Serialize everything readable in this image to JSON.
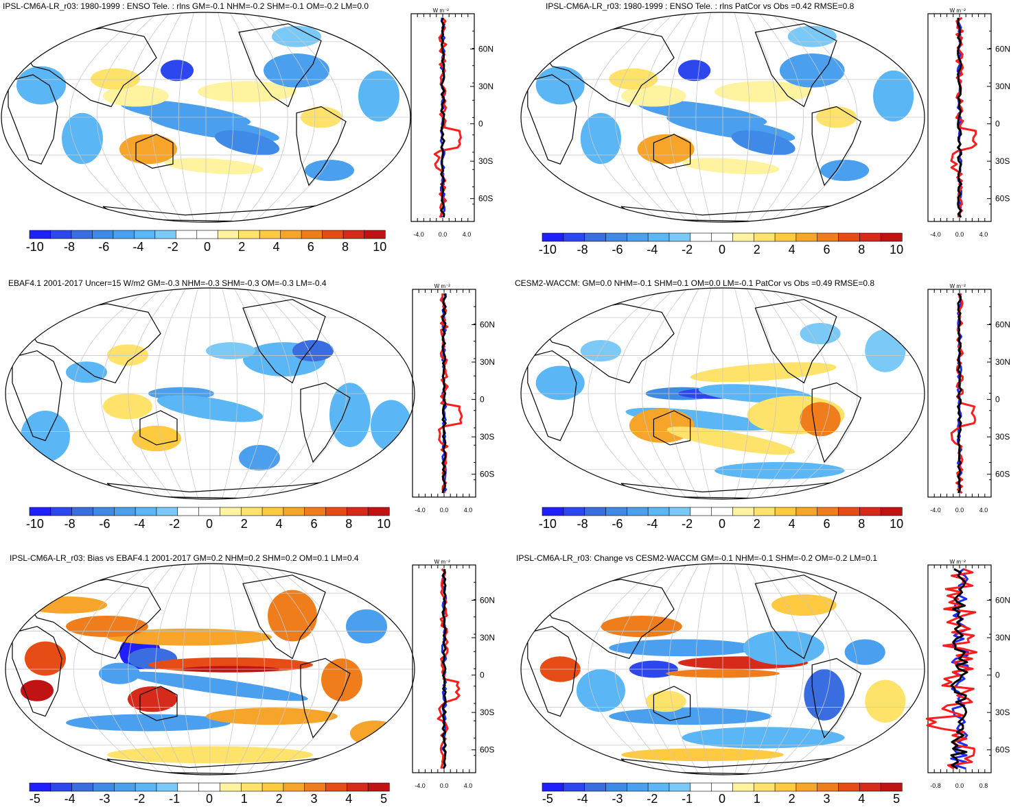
{
  "colors": {
    "scale": [
      "#2020ff",
      "#2d47ee",
      "#3a6ee0",
      "#3f8ae6",
      "#4aa0ee",
      "#5ab6f4",
      "#7ac9f6",
      "#ffffff",
      "#ffffff",
      "#fff3a0",
      "#ffe26a",
      "#ffc940",
      "#f7a52a",
      "#f07d1c",
      "#e64d16",
      "#d62a1a",
      "#c01414"
    ],
    "red_line": "#ff1c1c",
    "blue_line": "#1c2cff",
    "black_line": "#000000",
    "grid": "#c8c8c8"
  },
  "panels": [
    {
      "id": "p1",
      "title": "IPSL-CM6A-LR_r03: 1980-1999 : ENSO Tele. : rlns GM=-0.1 NHM=-0.2 SHM=-0.1 OM=-0.2 LM=0.0",
      "lat_labels": [
        "60N",
        "30N",
        "0",
        "30S",
        "60S"
      ],
      "profile_xticks": [
        "-4.0",
        "0.0",
        "4.0"
      ],
      "profile_units": "W m⁻²",
      "colorbar_labels": [
        "-10",
        "-8",
        "-6",
        "-4",
        "-2",
        "0",
        "2",
        "4",
        "6",
        "8",
        "10"
      ],
      "shading": "enso"
    },
    {
      "id": "p2",
      "title": "IPSL-CM6A-LR_r03: 1980-1999 : ENSO Tele. : rlns PatCor vs Obs =0.42 RMSE=0.8",
      "lat_labels": [
        "60N",
        "30N",
        "0",
        "30S",
        "60S"
      ],
      "profile_xticks": [
        "-4.0",
        "0.0",
        "4.0"
      ],
      "profile_units": "W m⁻²",
      "colorbar_labels": [
        "-10",
        "-8",
        "-6",
        "-4",
        "-2",
        "0",
        "2",
        "4",
        "6",
        "8",
        "10"
      ],
      "shading": "enso"
    },
    {
      "id": "p3",
      "title": "EBAF4.1 2001-2017 Uncer=15 W/m2 GM=-0.3 NHM=-0.3 SHM=-0.3 OM=-0.3 LM=-0.4",
      "lat_labels": [
        "60N",
        "30N",
        "0",
        "30S",
        "60S"
      ],
      "profile_xticks": [
        "-4.0",
        "0.0",
        "4.0"
      ],
      "profile_units": "W m⁻²",
      "colorbar_labels": [
        "-10",
        "-8",
        "-6",
        "-4",
        "-2",
        "0",
        "2",
        "4",
        "6",
        "8",
        "10"
      ],
      "shading": "obs"
    },
    {
      "id": "p4",
      "title": "CESM2-WACCM: GM=0.0 NHM=-0.1 SHM=0.1 OM=0.0 LM=-0.1 PatCor vs Obs =0.49 RMSE=0.8",
      "lat_labels": [
        "60N",
        "30N",
        "0",
        "30S",
        "60S"
      ],
      "profile_xticks": [
        "-4.0",
        "0.0",
        "4.0"
      ],
      "profile_units": "W m⁻²",
      "colorbar_labels": [
        "-10",
        "-8",
        "-6",
        "-4",
        "-2",
        "0",
        "2",
        "4",
        "6",
        "8",
        "10"
      ],
      "shading": "cesm"
    },
    {
      "id": "p5",
      "title": "IPSL-CM6A-LR_r03: Bias vs EBAF4.1 2001-2017 GM=0.2 NHM=0.2 SHM=0.2 OM=0.1 LM=0.4",
      "lat_labels": [
        "60N",
        "30N",
        "0",
        "30S",
        "60S"
      ],
      "profile_xticks": [
        "-4.0",
        "0.0",
        "4.0"
      ],
      "profile_units": "W m⁻²",
      "colorbar_labels": [
        "-5",
        "-4",
        "-3",
        "-2",
        "-1",
        "0",
        "1",
        "2",
        "3",
        "4",
        "5"
      ],
      "shading": "bias"
    },
    {
      "id": "p6",
      "title": "IPSL-CM6A-LR_r03: Change vs CESM2-WACCM GM=-0.1 NHM=-0.1 SHM=-0.2 OM=-0.2 LM=0.1",
      "lat_labels": [
        "60N",
        "30N",
        "0",
        "30S",
        "60S"
      ],
      "profile_xticks": [
        "-0.8",
        "0.0",
        "0.8"
      ],
      "profile_units": "W m⁻²",
      "colorbar_labels": [
        "-5",
        "-4",
        "-3",
        "-2",
        "-1",
        "0",
        "1",
        "2",
        "3",
        "4",
        "5"
      ],
      "shading": "change"
    }
  ]
}
